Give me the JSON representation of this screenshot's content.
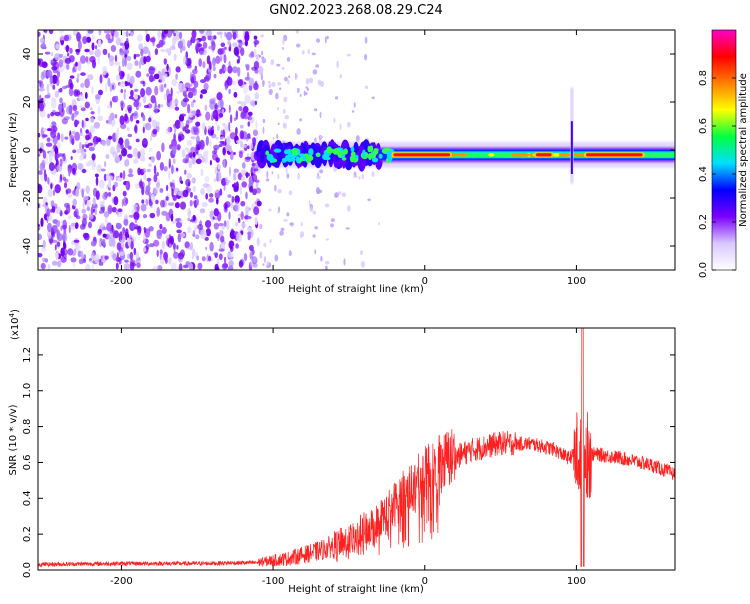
{
  "title": "GN02.2023.268.08.29.C24",
  "chart_data": [
    {
      "type": "heatmap",
      "name": "spectrogram",
      "xlabel": "Height of straight line (km)",
      "ylabel": "Frequency (Hz)",
      "xlim": [
        -255,
        165
      ],
      "ylim": [
        -50,
        50
      ],
      "xticks": [
        -200,
        -100,
        0,
        100
      ],
      "xtick_labels": [
        "-200",
        "-100",
        "0",
        "100"
      ],
      "yticks": [
        -40,
        -20,
        0,
        20,
        40
      ],
      "ytick_labels": [
        "-40",
        "-20",
        "0",
        "20",
        "40"
      ],
      "noise_region_x": [
        -255,
        -108
      ],
      "transition_region_x": [
        -108,
        -30
      ],
      "signal_band": {
        "x": [
          -30,
          165
        ],
        "center_hz": -2
      },
      "saturated_segments_x": [
        [
          -22,
          18
        ],
        [
          72,
          85
        ],
        [
          105,
          145
        ]
      ],
      "spike_x": 97,
      "colorbar": {
        "label": "Normalized spectral amplitude",
        "range": [
          0.0,
          1.0
        ],
        "ticks": [
          0.0,
          0.2,
          0.4,
          0.6,
          0.8
        ],
        "tick_labels": [
          "0.0",
          "0.2",
          "0.4",
          "0.6",
          "0.8"
        ],
        "colors": [
          "#ffffff",
          "#d9c8ff",
          "#7a00ff",
          "#0000ff",
          "#00e0ff",
          "#00ff40",
          "#ffff00",
          "#ff8000",
          "#ff0000",
          "#ff00c8"
        ]
      }
    },
    {
      "type": "line",
      "name": "snr",
      "xlabel": "Height of straight line (km)",
      "ylabel": "SNR (10 * v/v)",
      "y_multiplier": "(x10",
      "y_multiplier_exp": "4",
      "y_multiplier_close": ")",
      "color": "#ff2020",
      "xlim": [
        -255,
        165
      ],
      "ylim": [
        0,
        1.35
      ],
      "xticks": [
        -200,
        -100,
        0,
        100
      ],
      "xtick_labels": [
        "-200",
        "-100",
        "0",
        "100"
      ],
      "yticks": [
        0.0,
        0.2,
        0.4,
        0.6,
        0.8,
        1.0,
        1.2
      ],
      "ytick_labels": [
        "0.0",
        "0.2",
        "0.4",
        "0.6",
        "0.8",
        "1.0",
        "1.2"
      ],
      "envelope_x": [
        -255,
        -200,
        -150,
        -110,
        -90,
        -70,
        -50,
        -30,
        -15,
        0,
        15,
        30,
        50,
        70,
        85,
        95,
        100,
        115,
        130,
        150,
        165
      ],
      "envelope_y": [
        0.03,
        0.035,
        0.035,
        0.04,
        0.06,
        0.1,
        0.16,
        0.26,
        0.4,
        0.52,
        0.6,
        0.66,
        0.7,
        0.7,
        0.67,
        0.62,
        0.65,
        0.64,
        0.62,
        0.58,
        0.53
      ],
      "spike": {
        "x": 104,
        "peak": 1.35,
        "trough": 0.02
      }
    }
  ]
}
